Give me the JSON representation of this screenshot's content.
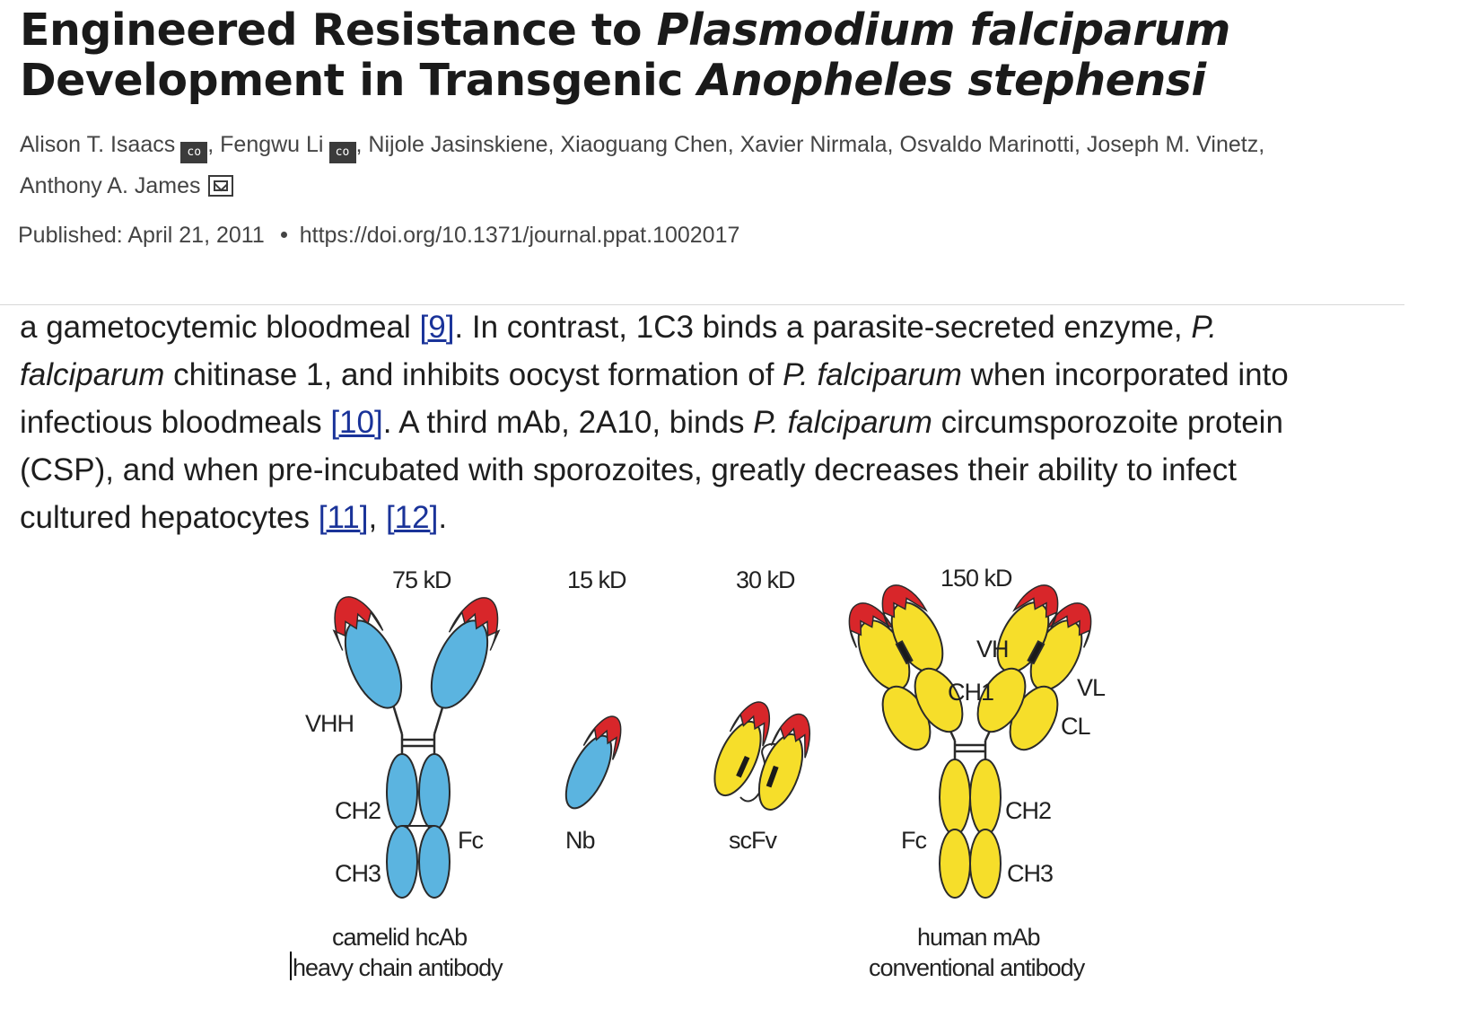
{
  "article": {
    "title_line1_plain": "Engineered Resistance to ",
    "title_line1_italic": "Plasmodium falciparum",
    "title_line2_plain": "Development in Transgenic ",
    "title_line2_italic": "Anopheles stephensi",
    "authors": [
      {
        "name": "Alison T. Isaacs",
        "badge": "co",
        "sep": ","
      },
      {
        "name": "Fengwu Li",
        "badge": "co",
        "sep": ","
      },
      {
        "name": "Nijole Jasinskiene",
        "sep": ","
      },
      {
        "name": "Xiaoguang Chen",
        "sep": ","
      },
      {
        "name": "Xavier Nirmala",
        "sep": ","
      },
      {
        "name": "Osvaldo Marinotti",
        "sep": ","
      },
      {
        "name": "Joseph M. Vinetz",
        "sep": ","
      },
      {
        "name": "Anthony A. James",
        "icon": "mail-icon"
      }
    ],
    "published_label": "Published: April 21, 2011",
    "doi": "https://doi.org/10.1371/journal.ppat.1002017"
  },
  "body": {
    "l1a": "a gametocytemic bloodmeal ",
    "ref9": "[9]",
    "l1b": ". In contrast, 1C3 binds a parasite-secreted enzyme, ",
    "l1c": "P.",
    "l2a": "falciparum",
    "l2b": " chitinase 1, and inhibits oocyst formation of ",
    "l2c": "P. falciparum",
    "l2d": " when incorporated into",
    "l3a": "infectious bloodmeals ",
    "ref10": "[10]",
    "l3b": ". A third mAb, 2A10, binds ",
    "l3c": "P. falciparum",
    "l3d": " circumsporozoite protein",
    "l4": "(CSP), and when pre-incubated with sporozoites, greatly decreases their ability to infect",
    "l5a": "cultured hepatocytes ",
    "ref11": "[11]",
    "l5b": ", ",
    "ref12": "[12]",
    "l5c": "."
  },
  "figure": {
    "mass_hcab": "75 kD",
    "mass_nb": "15 kD",
    "mass_scfv": "30 kD",
    "mass_mab": "150 kD",
    "vhh": "VHH",
    "ch2_left": "CH2",
    "ch3_left": "CH3",
    "fc_left": "Fc",
    "nb": "Nb",
    "scfv": "scFv",
    "vh": "VH",
    "ch1": "CH1",
    "vl": "VL",
    "cl": "CL",
    "ch2_right": "CH2",
    "ch3_right": "CH3",
    "fc_right": "Fc",
    "caption_left_1": "camelid hcAb",
    "caption_left_2": "heavy chain antibody",
    "caption_right_1": "human mAb",
    "caption_right_2": "conventional antibody",
    "colors": {
      "camelid": "#5bb4e0",
      "human": "#f6de2a",
      "tip": "#d8262a",
      "outline": "#2a2a2a"
    }
  }
}
